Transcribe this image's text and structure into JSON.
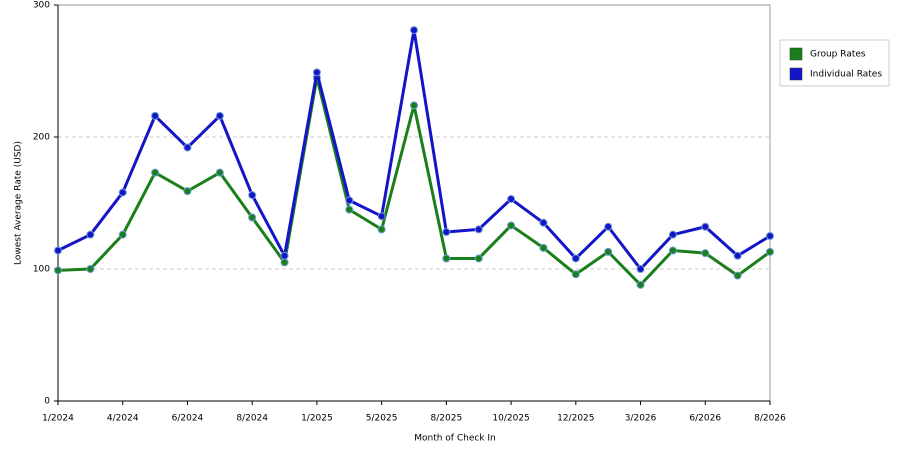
{
  "chart_data": {
    "type": "line",
    "x_label": "Month of Check In",
    "y_label": "Lowest Average Rate (USD)",
    "categories": [
      "1/2024",
      null,
      "4/2024",
      null,
      "6/2024",
      null,
      "8/2024",
      null,
      "1/2025",
      null,
      "5/2025",
      null,
      "8/2025",
      null,
      "10/2025",
      null,
      "12/2025",
      null,
      "3/2026",
      null,
      "6/2026",
      null,
      "8/2026"
    ],
    "series": [
      {
        "name": "Group Rates",
        "color": "#1a7f1a",
        "values": [
          99,
          100,
          126,
          173,
          159,
          173,
          139,
          105,
          245,
          145,
          130,
          224,
          108,
          108,
          133,
          116,
          96,
          113,
          88,
          114,
          112,
          95,
          113
        ]
      },
      {
        "name": "Individual Rates",
        "color": "#1515c8",
        "values": [
          114,
          126,
          158,
          216,
          192,
          216,
          156,
          110,
          249,
          152,
          140,
          281,
          128,
          130,
          153,
          135,
          108,
          132,
          100,
          126,
          132,
          110,
          125
        ]
      }
    ],
    "ylim": [
      0,
      300
    ],
    "yticks": [
      0,
      100,
      200,
      300
    ],
    "grid": true,
    "legend": "right"
  }
}
